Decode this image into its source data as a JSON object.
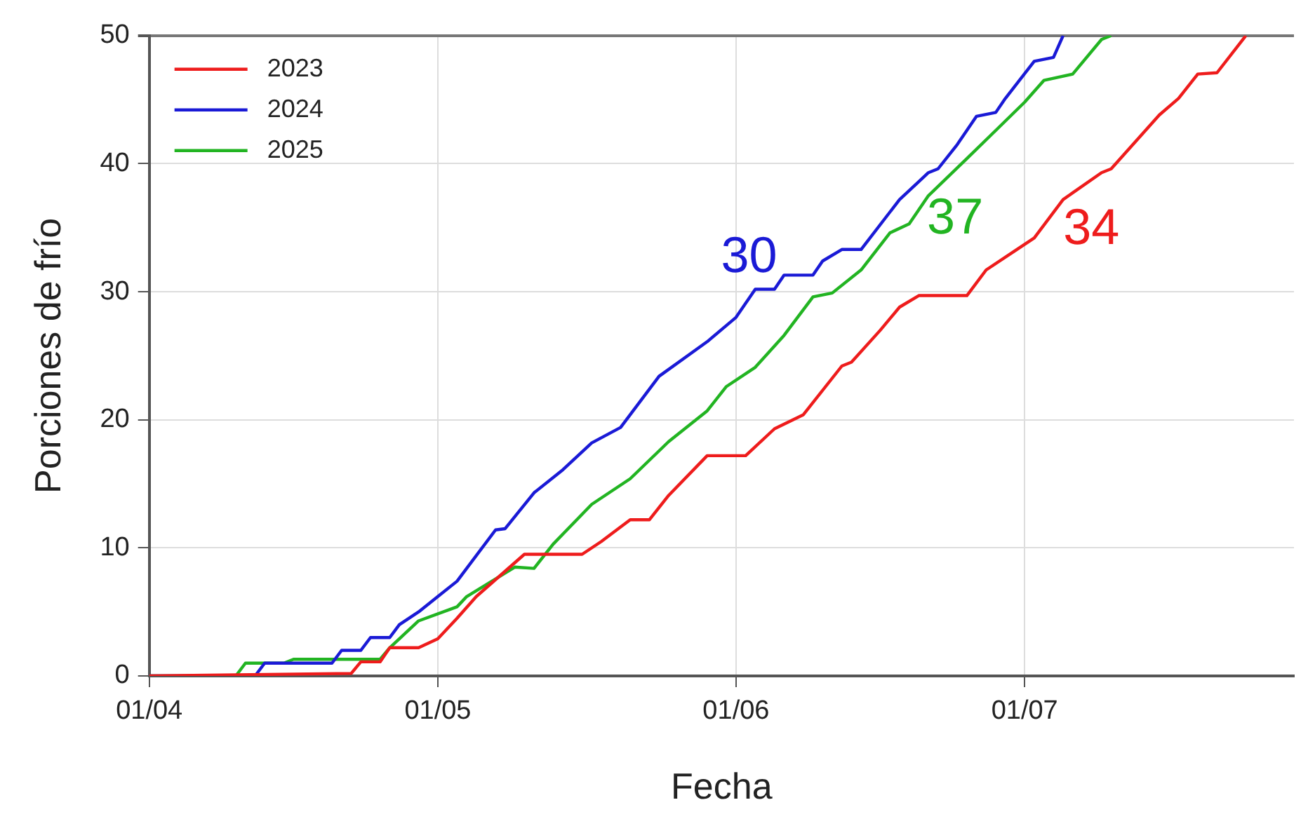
{
  "chart_data": {
    "type": "line",
    "xlabel": "Fecha",
    "ylabel": "Porciones de frío",
    "xlim": [
      "--04-01",
      "--07-29"
    ],
    "xticks": [
      {
        "value": "--04-01",
        "label": "01/04"
      },
      {
        "value": "--05-01",
        "label": "01/05"
      },
      {
        "value": "--06-01",
        "label": "01/06"
      },
      {
        "value": "--07-01",
        "label": "01/07"
      }
    ],
    "ylim": [
      0,
      50
    ],
    "yticks": [
      0,
      10,
      20,
      30,
      40,
      50
    ],
    "grid": true,
    "legend": "top left",
    "marker": "none",
    "line_style": "solid",
    "series": [
      {
        "name": "2023",
        "color": "#ee1c1c",
        "x": [
          "--04-01",
          "--04-22",
          "--04-23",
          "--04-25",
          "--04-26",
          "--04-29",
          "--05-01",
          "--05-03",
          "--05-05",
          "--05-10",
          "--05-16",
          "--05-18",
          "--05-21",
          "--05-23",
          "--05-25",
          "--05-29",
          "--06-02",
          "--06-05",
          "--06-08",
          "--06-12",
          "--06-13",
          "--06-16",
          "--06-18",
          "--06-20",
          "--06-25",
          "--06-27",
          "--06-30",
          "--07-02",
          "--07-05",
          "--07-09",
          "--07-10",
          "--07-15",
          "--07-17",
          "--07-19",
          "--07-21",
          "--07-24"
        ],
        "values": [
          0,
          0.2,
          1.1,
          1.1,
          2.2,
          2.2,
          2.9,
          4.5,
          6.2,
          9.5,
          9.5,
          10.5,
          12.2,
          12.2,
          14.1,
          17.2,
          17.2,
          19.3,
          20.4,
          24.2,
          24.5,
          27,
          28.8,
          29.7,
          29.7,
          31.7,
          33.2,
          34.2,
          37.2,
          39.3,
          39.6,
          43.8,
          45.1,
          47,
          47.1,
          50
        ]
      },
      {
        "name": "2024",
        "color": "#1a1ad6",
        "x": [
          "--04-01",
          "--04-12",
          "--04-13",
          "--04-20",
          "--04-21",
          "--04-23",
          "--04-24",
          "--04-26",
          "--04-27",
          "--04-29",
          "--05-01",
          "--05-03",
          "--05-07",
          "--05-08",
          "--05-11",
          "--05-14",
          "--05-17",
          "--05-20",
          "--05-24",
          "--05-29",
          "--06-01",
          "--06-03",
          "--06-05",
          "--06-06",
          "--06-09",
          "--06-10",
          "--06-12",
          "--06-14",
          "--06-18",
          "--06-21",
          "--06-22",
          "--06-24",
          "--06-26",
          "--06-28",
          "--06-29",
          "--07-02",
          "--07-04",
          "--07-05"
        ],
        "values": [
          0,
          0,
          1,
          1,
          2,
          2,
          3,
          3,
          4,
          5,
          6.2,
          7.4,
          11.4,
          11.5,
          14.3,
          16.1,
          18.2,
          19.4,
          23.4,
          26.1,
          28,
          30.2,
          30.2,
          31.3,
          31.3,
          32.4,
          33.3,
          33.3,
          37.2,
          39.3,
          39.6,
          41.5,
          43.7,
          44,
          45.1,
          48,
          48.3,
          50
        ]
      },
      {
        "name": "2025",
        "color": "#22b422",
        "x": [
          "--04-01",
          "--04-10",
          "--04-11",
          "--04-15",
          "--04-16",
          "--04-25",
          "--04-26",
          "--04-29",
          "--05-03",
          "--05-04",
          "--05-09",
          "--05-11",
          "--05-13",
          "--05-17",
          "--05-21",
          "--05-25",
          "--05-29",
          "--05-31",
          "--06-03",
          "--06-06",
          "--06-09",
          "--06-11",
          "--06-14",
          "--06-17",
          "--06-19",
          "--06-21",
          "--06-25",
          "--06-28",
          "--07-01",
          "--07-03",
          "--07-06",
          "--07-09",
          "--07-10"
        ],
        "values": [
          0,
          0,
          1,
          1,
          1.3,
          1.3,
          2.2,
          4.3,
          5.4,
          6.2,
          8.5,
          8.4,
          10.3,
          13.4,
          15.4,
          18.3,
          20.7,
          22.6,
          24.1,
          26.6,
          29.6,
          29.9,
          31.7,
          34.6,
          35.3,
          37.5,
          40.4,
          42.6,
          44.8,
          46.5,
          47,
          49.7,
          50
        ]
      }
    ],
    "annotations": [
      "34",
      "30",
      "37"
    ]
  }
}
